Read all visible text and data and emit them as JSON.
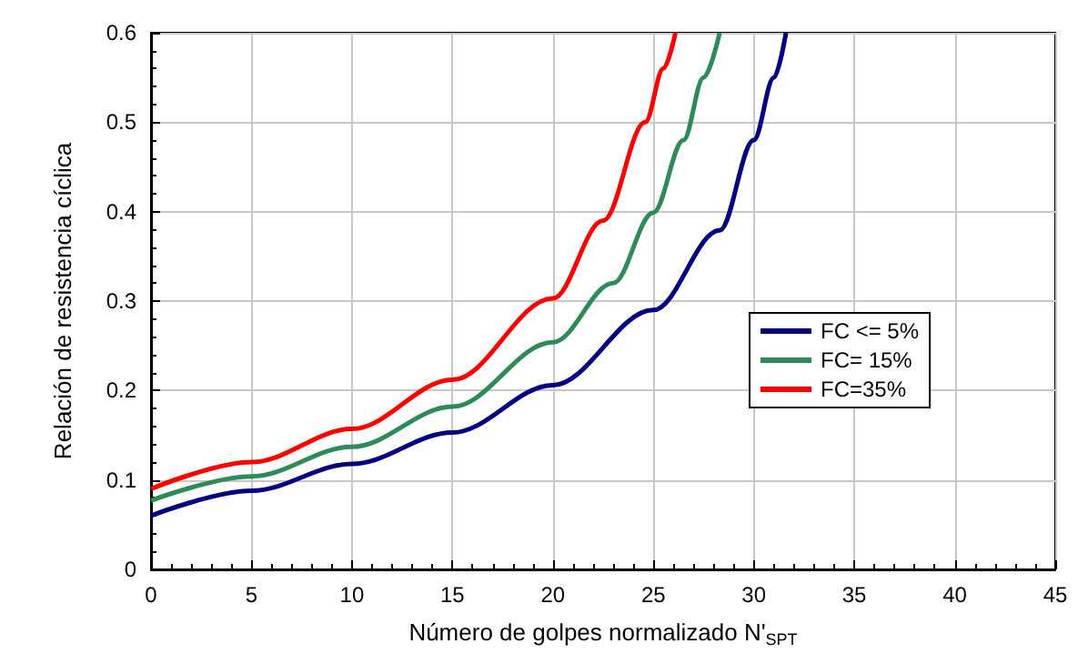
{
  "chart_data": {
    "type": "line",
    "xlabel": "Número de golpes normalizado N'$_{SPT}$",
    "ylabel": "Relación de resistencia cíclica",
    "xlim": [
      0,
      45
    ],
    "xticks": [
      0,
      5,
      10,
      15,
      20,
      25,
      30,
      35,
      40,
      45
    ],
    "ylim": [
      0,
      0.6
    ],
    "yticks": [
      0,
      0.1,
      0.2,
      0.3,
      0.4,
      0.5,
      0.6
    ],
    "grid": true,
    "legend": "right",
    "marker": "none",
    "line_style": "solid",
    "series": [
      {
        "name": "FC <= 5%",
        "color": "#000080",
        "x": [
          0,
          5,
          10,
          15,
          20,
          25,
          28.3,
          30,
          31,
          31.6
        ],
        "values": [
          0.06,
          0.088,
          0.118,
          0.153,
          0.206,
          0.29,
          0.379,
          0.48,
          0.55,
          0.6
        ]
      },
      {
        "name": "FC= 15%",
        "color": "#2e8b57",
        "x": [
          0,
          5,
          10,
          15,
          20,
          23,
          25,
          26.5,
          27.5,
          28.3
        ],
        "values": [
          0.077,
          0.104,
          0.137,
          0.182,
          0.254,
          0.32,
          0.399,
          0.48,
          0.55,
          0.6
        ]
      },
      {
        "name": "FC=35%",
        "color": "#ff0000",
        "x": [
          0,
          5,
          10,
          15,
          20,
          22.5,
          24.6,
          25.5,
          26.1
        ],
        "values": [
          0.09,
          0.12,
          0.157,
          0.212,
          0.303,
          0.39,
          0.5,
          0.56,
          0.6
        ]
      }
    ]
  }
}
